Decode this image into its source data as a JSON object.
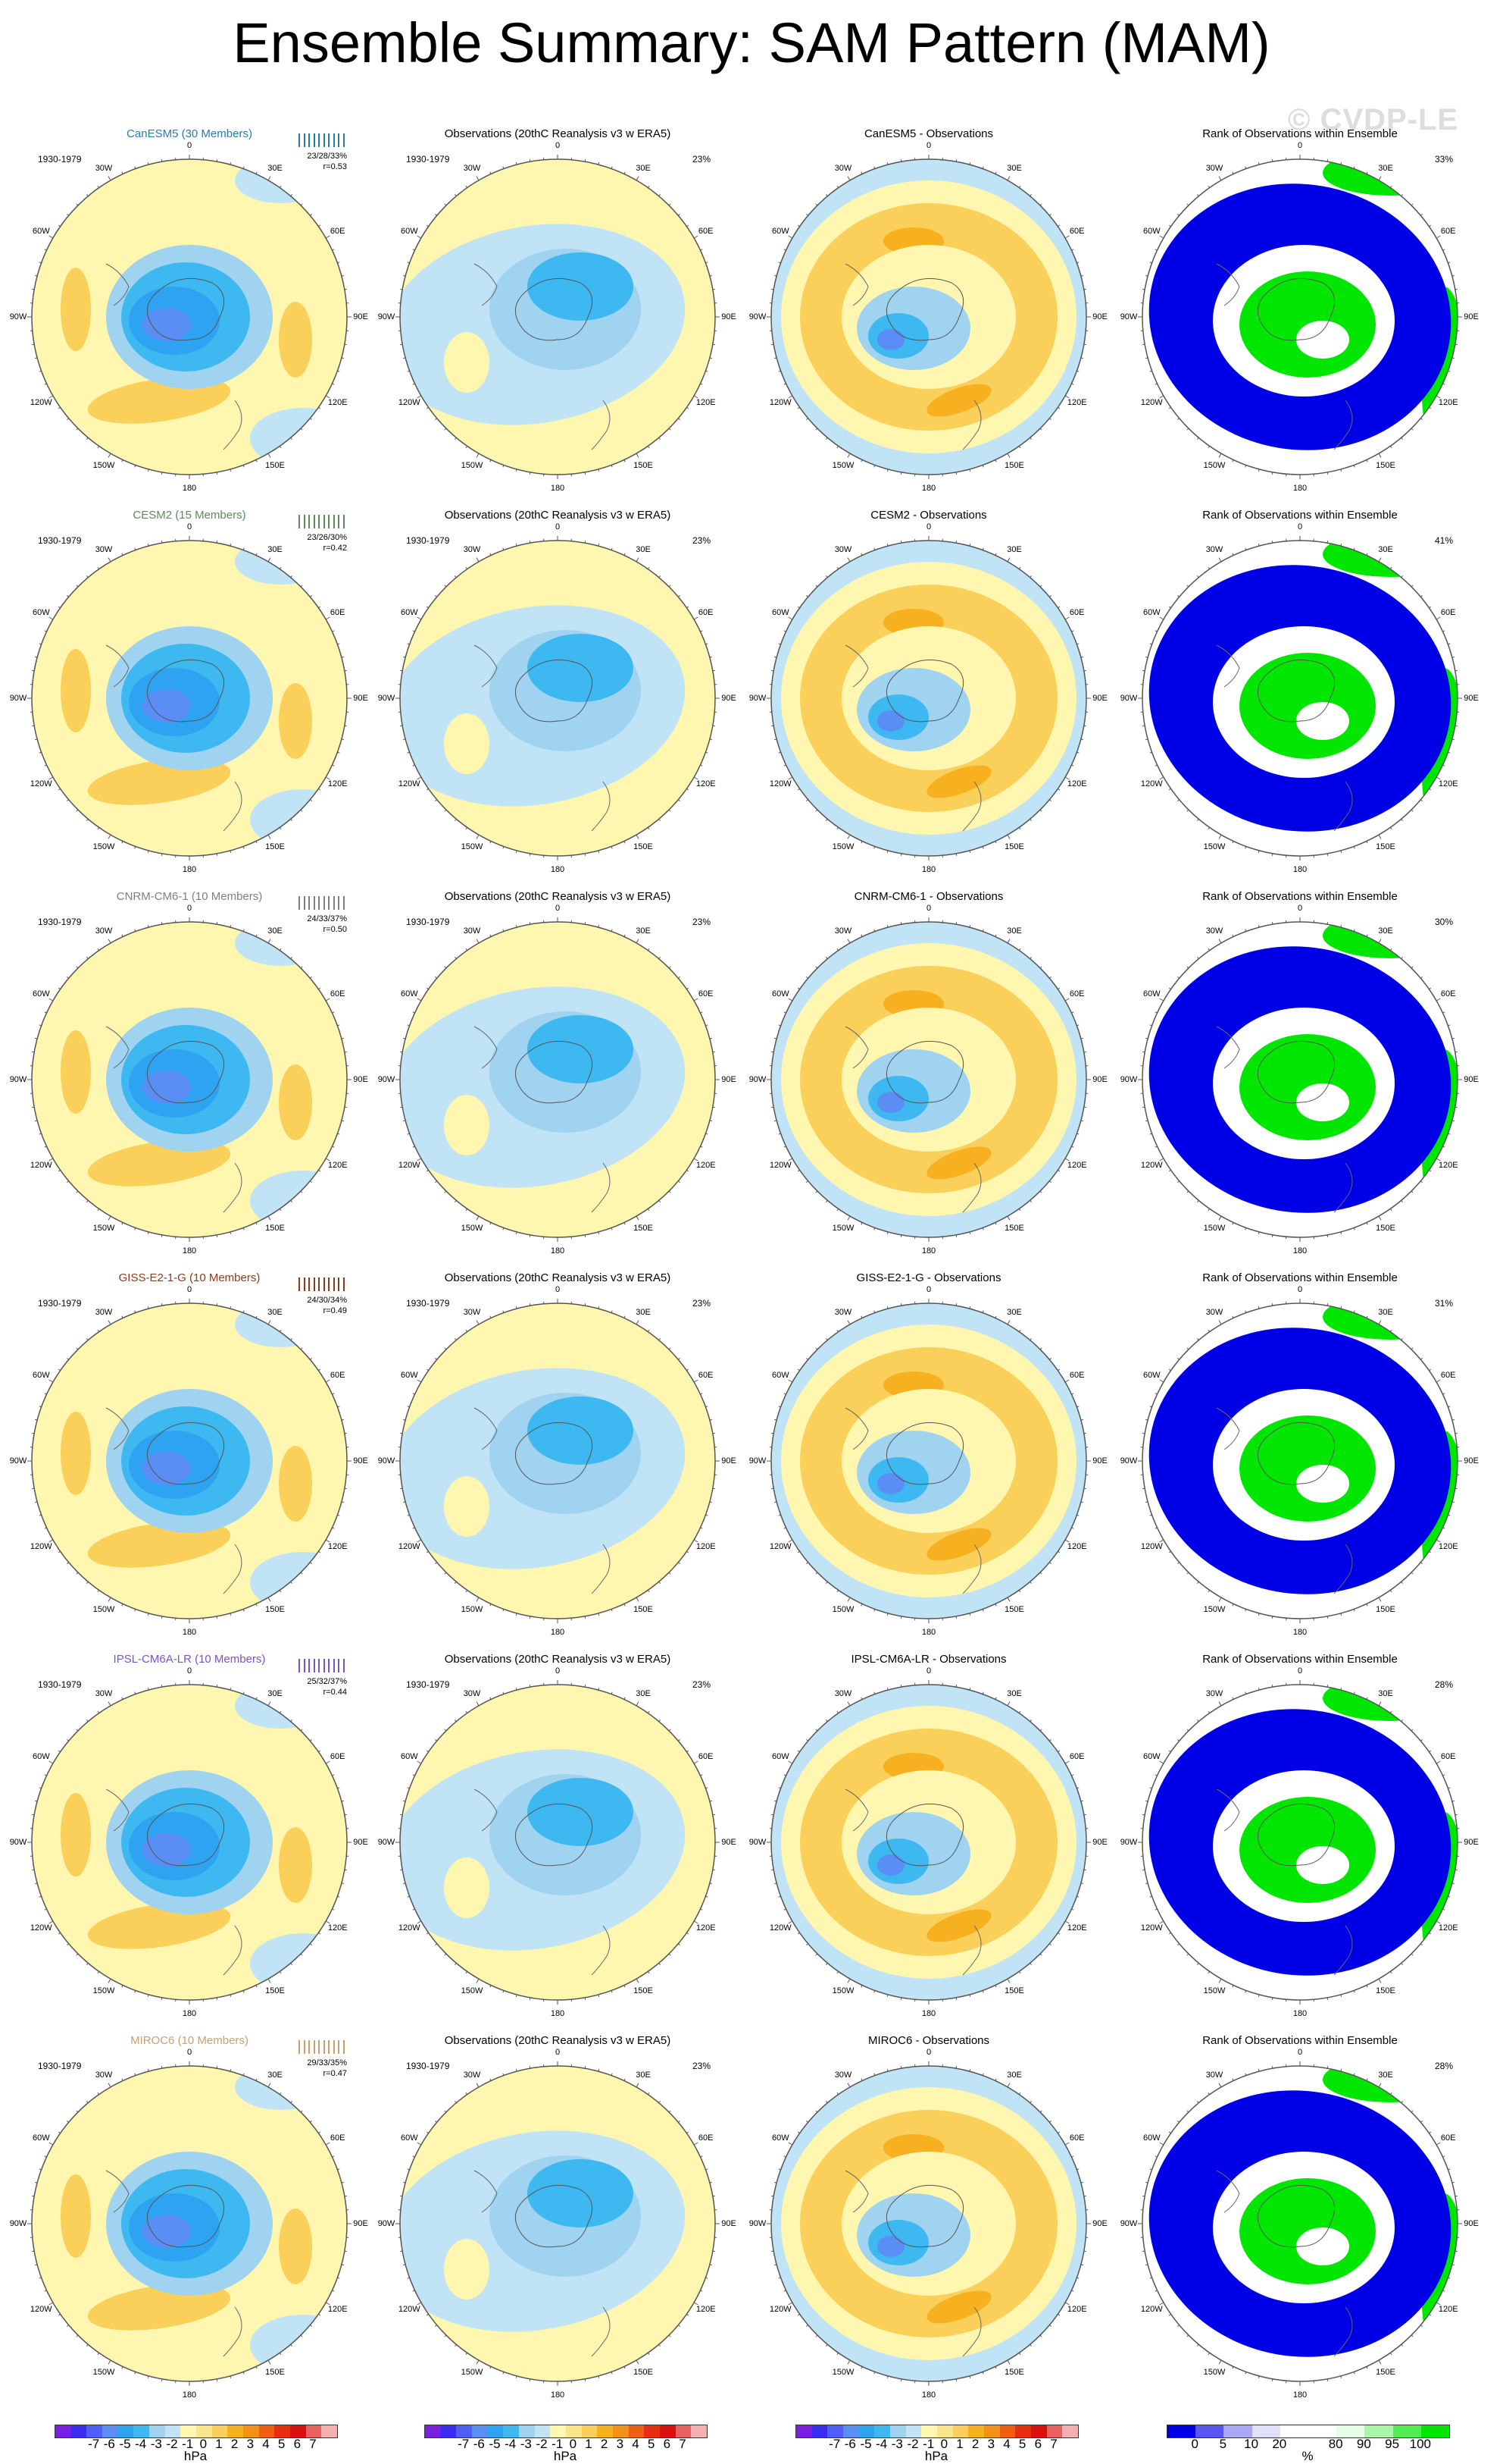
{
  "title": "Ensemble Summary: SAM Pattern (MAM)",
  "watermark": "© CVDP-LE",
  "observations_title": "Observations (20thC Reanalysis v3 w ERA5)",
  "rank_title": "Rank of Observations within Ensemble",
  "period": "1930-1979",
  "obs_pct": "23%",
  "meridian_labels": [
    "0",
    "30E",
    "60E",
    "90E",
    "120E",
    "150E",
    "180",
    "150W",
    "120W",
    "90W",
    "60W",
    "30W"
  ],
  "models": [
    {
      "title": "CanESM5 (30 Members)",
      "color": "#2a7aa8",
      "stats": "23/28/33%",
      "r": "r=0.53",
      "diff_title": "CanESM5 - Observations",
      "rank_pct": "33%"
    },
    {
      "title": "CESM2 (15 Members)",
      "color": "#5e8a5e",
      "stats": "23/26/30%",
      "r": "r=0.42",
      "diff_title": "CESM2 - Observations",
      "rank_pct": "41%"
    },
    {
      "title": "CNRM-CM6-1 (10 Members)",
      "color": "#808080",
      "stats": "24/33/37%",
      "r": "r=0.50",
      "diff_title": "CNRM-CM6-1 - Observations",
      "rank_pct": "30%"
    },
    {
      "title": "GISS-E2-1-G (10 Members)",
      "color": "#8b3a1e",
      "stats": "24/30/34%",
      "r": "r=0.49",
      "diff_title": "GISS-E2-1-G - Observations",
      "rank_pct": "31%"
    },
    {
      "title": "IPSL-CM6A-LR (10 Members)",
      "color": "#7b52c8",
      "stats": "25/32/37%",
      "r": "r=0.44",
      "diff_title": "IPSL-CM6A-LR - Observations",
      "rank_pct": "28%"
    },
    {
      "title": "MIROC6 (10 Members)",
      "color": "#c9a070",
      "stats": "29/33/35%",
      "r": "r=0.47",
      "diff_title": "MIROC6 - Observations",
      "rank_pct": "28%"
    }
  ],
  "hpa_colorbar": {
    "colors": [
      "#7b1fe0",
      "#3b2df0",
      "#4f5ff6",
      "#5a8ef5",
      "#2ea3f2",
      "#3db8f0",
      "#9fd3f0",
      "#c0e3f5",
      "#fff7b0",
      "#fbe58a",
      "#fbd05a",
      "#f6b020",
      "#f29018",
      "#ee6010",
      "#e43010",
      "#d81010",
      "#e86060",
      "#f4b0b0"
    ],
    "ticks": [
      "-7",
      "-6",
      "-5",
      "-4",
      "-3",
      "-2",
      "-1",
      "0",
      "1",
      "2",
      "3",
      "4",
      "5",
      "6",
      "7"
    ],
    "unit": "hPa"
  },
  "rank_colorbar": {
    "colors": [
      "#0000e6",
      "#5858f0",
      "#a9a9f5",
      "#e0e0fa",
      "#ffffff",
      "#ffffff",
      "#e6fde6",
      "#a8f5a8",
      "#50ec50",
      "#00e600"
    ],
    "ticks": [
      "0",
      "5",
      "10",
      "20",
      "80",
      "90",
      "95",
      "100"
    ],
    "unit": "%"
  }
}
